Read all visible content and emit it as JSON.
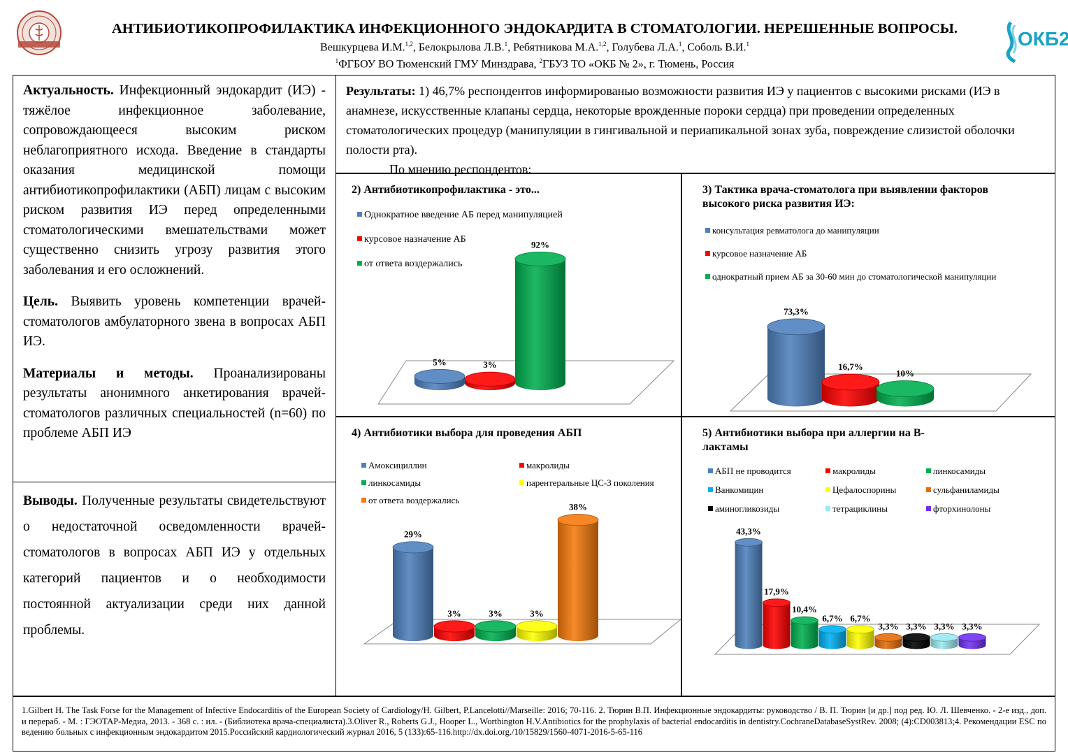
{
  "header": {
    "title": "АНТИБИОТИКОПРОФИЛАКТИКА ИНФЕКЦИОННОГО ЭНДОКАРДИТА В СТОМАТОЛОГИИ. НЕРЕШЕННЫЕ ВОПРОСЫ.",
    "authors": [
      {
        "name": "Вешкурцева И.М.",
        "sup": "1,2"
      },
      {
        "name": "Белокрылова Л.В.",
        "sup": "1"
      },
      {
        "name": "Ребятникова М.А.",
        "sup": "1,2"
      },
      {
        "name": "Голубева Л.А.",
        "sup": "1"
      },
      {
        "name": "Соболь В.И.",
        "sup": "1"
      }
    ],
    "affil_sup1": "1",
    "affil1": "ФГБОУ ВО Тюменский ГМУ Минздрава, ",
    "affil_sup2": "2",
    "affil2": "ГБУЗ ТО «ОКБ № 2», г. Тюмень, Россия",
    "logo_right": "ОКБ2"
  },
  "left": {
    "relevance_title": "Актуальность.",
    "relevance_text": " Инфекционный эндокардит (ИЭ) - тяжёлое инфекционное заболевание, сопровождающееся высоким риском неблагоприятного исхода. Введение в стандарты оказания медицинской помощи антибиотикопрофилактики (АБП) лицам с высоким риском развития ИЭ перед определенными стоматологическими вмешательствами может существенно снизить угрозу развития этого заболевания и его осложнений.",
    "goal_title": "Цель.",
    "goal_text": " Выявить уровень компетенции врачей-стоматологов амбулаторного звена в вопросах АБП ИЭ.",
    "methods_title": "Материалы и методы.",
    "methods_text": " Проанализированы результаты анонимного анкетирования врачей-стоматологов различных специальностей (n=60) по проблеме АБП ИЭ",
    "conclusions_title": "Выводы.",
    "conclusions_text": " Полученные результаты свидетельствуют о недостаточной осведомленности врачей-стоматологов в вопросах АБП ИЭ у отдельных категорий пациентов и о необходимости постоянной актуализации среди них данной проблемы."
  },
  "results": {
    "title": "Результаты:",
    "text": " 1) 46,7% респондентов информированыо возможности развития ИЭ у пациентов с высокими рисками (ИЭ в анамнезе, искусственные клапаны сердца, некоторые врожденные пороки сердца) при проведении определенных стоматологических процедур (манипуляции в гингивальной и периапикальной зонах зуба, повреждение слизистой оболочки полости рта).",
    "opinion": "По мнению респондентов:"
  },
  "chart_data": [
    {
      "id": "c2",
      "type": "bar",
      "title": "2)  Антибиотикопрофилактика - это...",
      "series": [
        {
          "name": "Однократное введение АБ перед манипуляцией",
          "value": 5,
          "label": "5%",
          "color": "#4F81BD"
        },
        {
          "name": "курсовое назначение АБ",
          "value": 3,
          "label": "3%",
          "color": "#FF0000"
        },
        {
          "name": "от ответа воздержались",
          "value": 92,
          "label": "92%",
          "color": "#00B050"
        }
      ]
    },
    {
      "id": "c3",
      "type": "bar",
      "title": "3)  Тактика врача-стоматолога при выявлении факторов высокого риска развития ИЭ:",
      "series": [
        {
          "name": "консультация ревматолога до манипуляции",
          "value": 73.3,
          "label": "73,3%",
          "color": "#4F81BD"
        },
        {
          "name": "курсовое назначение АБ",
          "value": 16.7,
          "label": "16,7%",
          "color": "#FF0000"
        },
        {
          "name": "однократный прием АБ за 30-60 мин до стоматологической манипуляции",
          "value": 10,
          "label": "10%",
          "color": "#00B050"
        }
      ]
    },
    {
      "id": "c4",
      "type": "bar",
      "title": "4)  Антибиотики выбора для проведения АБП",
      "series": [
        {
          "name": "Амоксициллин",
          "value": 29,
          "label": "29%",
          "color": "#4F81BD"
        },
        {
          "name": "макролиды",
          "value": 3,
          "label": "3%",
          "color": "#FF0000"
        },
        {
          "name": "линкосамиды",
          "value": 3,
          "label": "3%",
          "color": "#00B050"
        },
        {
          "name": "парентеральные ЦС-3 поколения",
          "value": 3,
          "label": "3%",
          "color": "#FFFF00"
        },
        {
          "name": "от ответа воздержались",
          "value": 38,
          "label": "38%",
          "color": "#F57A0C"
        }
      ]
    },
    {
      "id": "c5",
      "type": "bar",
      "title": "5)  Антибиотики выбора при аллергии на В-лактамы",
      "series": [
        {
          "name": "АБП не проводится",
          "value": 43.3,
          "label": "43,3%",
          "color": "#4F81BD"
        },
        {
          "name": "макролиды",
          "value": 17.9,
          "label": "17,9%",
          "color": "#FF0000"
        },
        {
          "name": "линкосамиды",
          "value": 10.4,
          "label": "10,4%",
          "color": "#00B050"
        },
        {
          "name": "Ванкомицин",
          "value": 6.7,
          "label": "6,7%",
          "color": "#00B0F0"
        },
        {
          "name": "Цефалоспорины",
          "value": 6.7,
          "label": "6,7%",
          "color": "#FFFF00"
        },
        {
          "name": "сульфаниламиды",
          "value": 3.3,
          "label": "3,3%",
          "color": "#E46C0A"
        },
        {
          "name": "аминогликозиды",
          "value": 3.3,
          "label": "3,3%",
          "color": "#000000"
        },
        {
          "name": "тетрациклины",
          "value": 3.3,
          "label": "3,3%",
          "color": "#9BE8F0"
        },
        {
          "name": "фторхинолоны",
          "value": 3.3,
          "label": "3,3%",
          "color": "#7030F0"
        }
      ]
    }
  ],
  "references": "1.Gilbert H. The Task Forse for the Management of Infective Endocarditis of the European Society of Cardiology/H. Gilbert, P.Lancelotti//Marseille: 2016; 70-116. 2. Тюрин В.П. Инфекционные эндокардиты: руководство / В. П. Тюрин [и др.] под ред. Ю. Л. Шевченко. - 2-е изд., доп. и перераб. - М. : ГЭОТАР-Медиа, 2013. - 368 с. : ил. - (Библиотека врача-специалиста).3.Oliver R., Roberts G.J., Hooper L., Worthington H.V.Antibiotics for the prophylaxis of bacterial endocarditis in dentistry.CochraneDatabaseSystRev. 2008; (4):CD003813;4.  Рекомендации ESC по ведению больных с инфекционным эндокардитом 2015.Российский кардиологический журнал 2016, 5 (133):65-116.http://dx.doi.org./10/15829/1560-4071-2016-5-65-116"
}
